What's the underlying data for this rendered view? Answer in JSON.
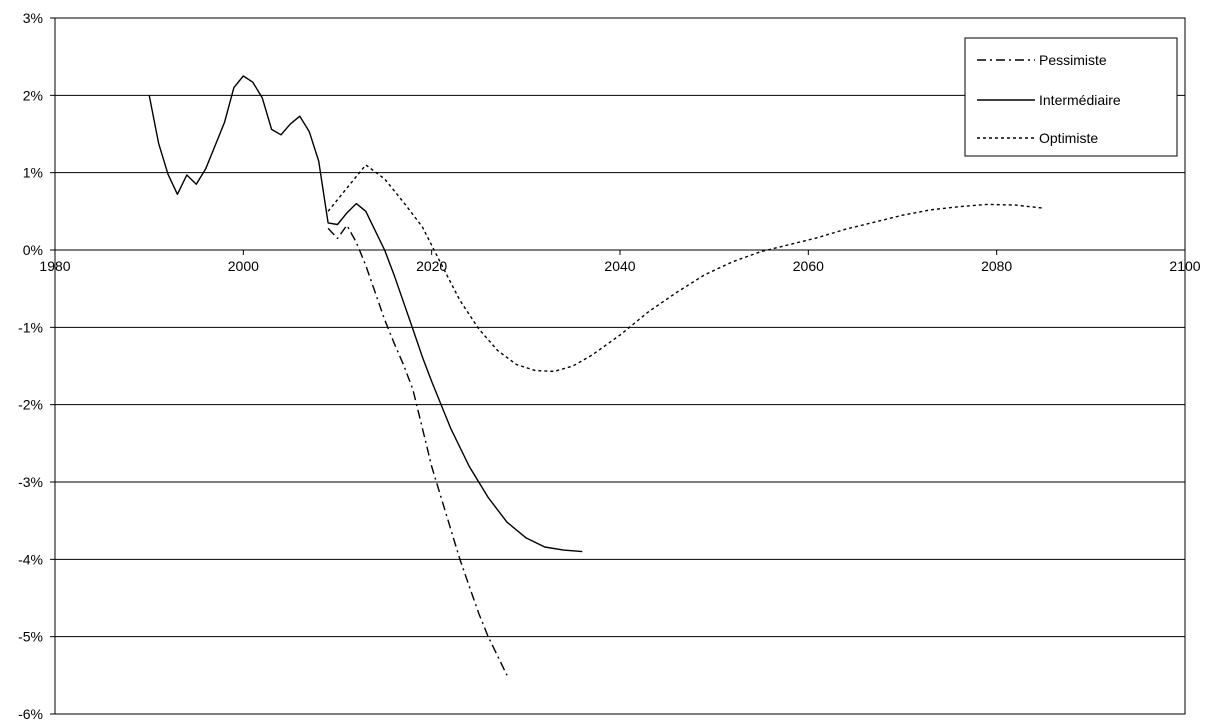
{
  "chart_data": {
    "type": "line",
    "title": "",
    "xlabel": "",
    "ylabel": "",
    "xlim": [
      1980,
      2100
    ],
    "ylim": [
      -6,
      3
    ],
    "x_ticks": [
      1980,
      2000,
      2020,
      2040,
      2060,
      2080,
      2100
    ],
    "x_tick_labels": [
      "1980",
      "2000",
      "2020",
      "2040",
      "2060",
      "2080",
      "2100"
    ],
    "y_ticks": [
      3,
      2,
      1,
      0,
      -1,
      -2,
      -3,
      -4,
      -5,
      -6
    ],
    "y_tick_labels": [
      "3%",
      "2%",
      "1%",
      "0%",
      "-1%",
      "-2%",
      "-3%",
      "-4%",
      "-5%",
      "-6%"
    ],
    "grid": "horizontal",
    "legend_position": "top-right",
    "series": [
      {
        "name": "Pessimiste",
        "dash": "dash-dot",
        "x": [
          2009,
          2010,
          2011,
          2012,
          2013,
          2014,
          2015,
          2016,
          2017,
          2018,
          2019,
          2020,
          2021,
          2022,
          2023,
          2024,
          2025,
          2026,
          2027,
          2028
        ],
        "y": [
          0.28,
          0.15,
          0.32,
          0.1,
          -0.2,
          -0.55,
          -0.9,
          -1.2,
          -1.48,
          -1.8,
          -2.3,
          -2.8,
          -3.2,
          -3.6,
          -4.0,
          -4.35,
          -4.7,
          -5.0,
          -5.25,
          -5.5
        ]
      },
      {
        "name": "Intermédiaire",
        "dash": "solid",
        "x": [
          1990,
          1991,
          1992,
          1993,
          1994,
          1995,
          1996,
          1997,
          1998,
          1999,
          2000,
          2001,
          2002,
          2003,
          2004,
          2005,
          2006,
          2007,
          2008,
          2009,
          2010,
          2011,
          2012,
          2013,
          2014,
          2015,
          2016,
          2017,
          2018,
          2019,
          2020,
          2022,
          2024,
          2026,
          2028,
          2030,
          2032,
          2034,
          2036
        ],
        "y": [
          2.0,
          1.38,
          0.98,
          0.72,
          0.97,
          0.85,
          1.05,
          1.35,
          1.65,
          2.1,
          2.25,
          2.17,
          1.97,
          1.56,
          1.49,
          1.63,
          1.73,
          1.53,
          1.15,
          0.35,
          0.33,
          0.48,
          0.6,
          0.5,
          0.25,
          0.0,
          -0.32,
          -0.67,
          -1.02,
          -1.38,
          -1.7,
          -2.3,
          -2.8,
          -3.2,
          -3.52,
          -3.72,
          -3.84,
          -3.88,
          -3.9
        ]
      },
      {
        "name": "Optimiste",
        "dash": "dotted",
        "x": [
          2009,
          2011,
          2013,
          2015,
          2017,
          2019,
          2021,
          2023,
          2025,
          2027,
          2029,
          2031,
          2033,
          2035,
          2037,
          2040,
          2043,
          2046,
          2049,
          2052,
          2055,
          2058,
          2061,
          2064,
          2067,
          2070,
          2073,
          2076,
          2079,
          2082,
          2085
        ],
        "y": [
          0.5,
          0.8,
          1.1,
          0.92,
          0.62,
          0.3,
          -0.18,
          -0.65,
          -1.02,
          -1.3,
          -1.48,
          -1.56,
          -1.57,
          -1.5,
          -1.36,
          -1.1,
          -0.8,
          -0.55,
          -0.32,
          -0.15,
          -0.02,
          0.07,
          0.16,
          0.27,
          0.36,
          0.45,
          0.52,
          0.56,
          0.59,
          0.58,
          0.54
        ]
      }
    ]
  }
}
